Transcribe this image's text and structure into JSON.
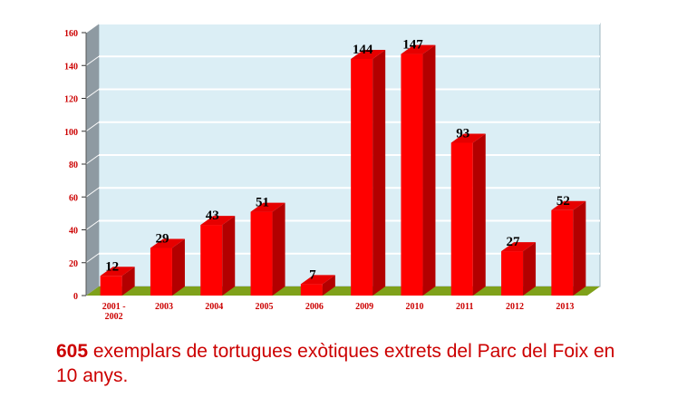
{
  "chart_data": {
    "type": "bar",
    "categories": [
      "2001 -\n2002",
      "2003",
      "2004",
      "2005",
      "2006",
      "2009",
      "2010",
      "2011",
      "2012",
      "2013"
    ],
    "values": [
      12,
      29,
      43,
      51,
      7,
      144,
      147,
      93,
      27,
      52
    ],
    "data_labels": [
      "12",
      "29",
      "43",
      "51",
      "7",
      "144",
      "147",
      "93",
      "27",
      "52"
    ],
    "ylim": [
      0,
      160
    ],
    "yticks": [
      "0",
      "20",
      "40",
      "60",
      "80",
      "100",
      "120",
      "140",
      "160"
    ],
    "grid": true,
    "style": "3d",
    "colors": {
      "bar": "#ff0000",
      "bar_side": "#b30000",
      "bar_top": "#e60000",
      "plot_back": "#dbeef5",
      "wall_left": "#8e9aa2",
      "floor": "#7fa11a",
      "tick_text": "#cc0000"
    }
  },
  "caption": {
    "number": "605",
    "text": " exemplars de tortugues exòtiques extrets del Parc del Foix en 10 anys."
  }
}
